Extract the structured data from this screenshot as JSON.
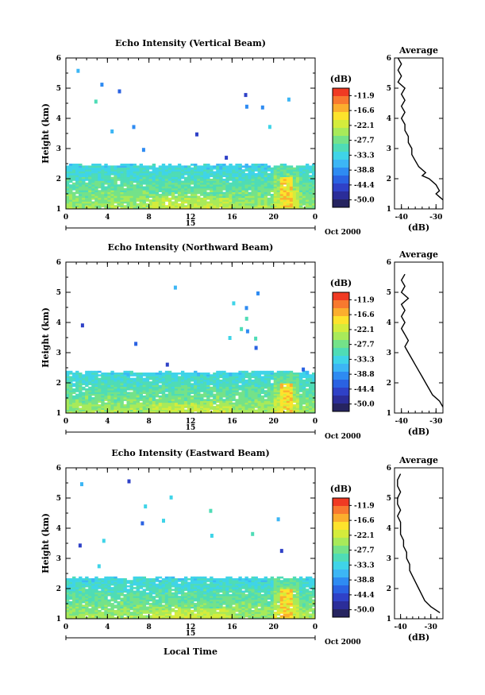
{
  "colorbar": {
    "unit": "(dB)",
    "tick_labels": [
      "-11.9",
      "-16.6",
      "-22.1",
      "-27.7",
      "-33.3",
      "-38.8",
      "-44.4",
      "-50.0"
    ],
    "colors": [
      "#f03a23",
      "#f8792f",
      "#fbae2e",
      "#fde32c",
      "#d4ec3c",
      "#a8ea5a",
      "#74e289",
      "#4fdcb6",
      "#3fd4e8",
      "#3cb6f5",
      "#2e8bf2",
      "#2a62e2",
      "#2f41c7",
      "#2b2d99",
      "#262460"
    ]
  },
  "shared": {
    "x_ticks": [
      "0",
      "4",
      "8",
      "12",
      "16",
      "20",
      "0"
    ],
    "date_bar_label": "15",
    "date_label": "Oct 2000",
    "xlabel": "Local Time",
    "ylabel": "Height (km)",
    "y_ticks": [
      "1",
      "2",
      "3",
      "4",
      "5",
      "6"
    ],
    "avg_title": "Average",
    "avg_xlabel": "(dB)"
  },
  "chart_data": [
    {
      "type": "heatmap",
      "title": "Echo Intensity (Vertical Beam)",
      "xlim": [
        0,
        24
      ],
      "ylim": [
        1,
        6
      ],
      "echo_top_km": 2.5,
      "x_unit": "hour",
      "y_unit": "km",
      "avg_profile": {
        "title": "Average",
        "xlabel": "(dB)",
        "x_ticks": [
          "-40",
          "-30"
        ],
        "xlim": [
          -42,
          -28
        ],
        "height": [
          1.3,
          1.4,
          1.5,
          1.6,
          1.8,
          2.0,
          2.1,
          2.2,
          2.4,
          2.6,
          2.8,
          3.0,
          3.2,
          3.4,
          3.6,
          3.8,
          4.0,
          4.2,
          4.4,
          4.6,
          4.8,
          5.0,
          5.2,
          5.4,
          5.6,
          5.8,
          6.0
        ],
        "db": [
          -28,
          -29,
          -30,
          -29,
          -30,
          -32,
          -34,
          -33,
          -35,
          -36,
          -37,
          -37,
          -38,
          -38,
          -39,
          -39,
          -40,
          -39,
          -40,
          -39,
          -40,
          -39,
          -41,
          -40,
          -41,
          -40,
          -41
        ]
      }
    },
    {
      "type": "heatmap",
      "title": "Echo Intensity (Northward Beam)",
      "xlim": [
        0,
        24
      ],
      "ylim": [
        1,
        6
      ],
      "echo_top_km": 2.4,
      "x_unit": "hour",
      "y_unit": "km",
      "avg_profile": {
        "title": "Average",
        "xlabel": "(dB)",
        "x_ticks": [
          "-40",
          "-30"
        ],
        "xlim": [
          -42,
          -28
        ],
        "height": [
          1.2,
          1.4,
          1.6,
          1.8,
          2.0,
          2.2,
          2.4,
          2.6,
          2.8,
          3.0,
          3.2,
          3.4,
          3.6,
          3.8,
          4.0,
          4.2,
          4.4,
          4.6,
          4.8,
          5.0,
          5.2,
          5.4,
          5.6
        ],
        "db": [
          -28,
          -29,
          -31,
          -32,
          -33,
          -34,
          -35,
          -36,
          -37,
          -38,
          -39,
          -38,
          -39,
          -40,
          -39,
          -40,
          -39,
          -40,
          -38,
          -40,
          -39,
          -40,
          -39
        ]
      }
    },
    {
      "type": "heatmap",
      "title": "Echo Intensity (Eastward Beam)",
      "xlim": [
        0,
        24
      ],
      "ylim": [
        1,
        6
      ],
      "echo_top_km": 2.4,
      "x_unit": "hour",
      "y_unit": "km",
      "avg_profile": {
        "title": "Average",
        "xlabel": "(dB)",
        "x_ticks": [
          "-40",
          "-30"
        ],
        "xlim": [
          -42,
          -26
        ],
        "height": [
          1.2,
          1.4,
          1.6,
          1.8,
          2.0,
          2.2,
          2.4,
          2.6,
          2.8,
          3.0,
          3.2,
          3.4,
          3.6,
          3.8,
          4.0,
          4.2,
          4.4,
          4.6,
          4.8,
          5.0,
          5.2,
          5.4,
          5.6,
          5.8
        ],
        "db": [
          -27,
          -30,
          -32,
          -33,
          -34,
          -35,
          -36,
          -37,
          -37,
          -38,
          -38,
          -39,
          -39,
          -40,
          -40,
          -40,
          -41,
          -40,
          -41,
          -41,
          -40,
          -41,
          -41,
          -40
        ]
      }
    }
  ]
}
